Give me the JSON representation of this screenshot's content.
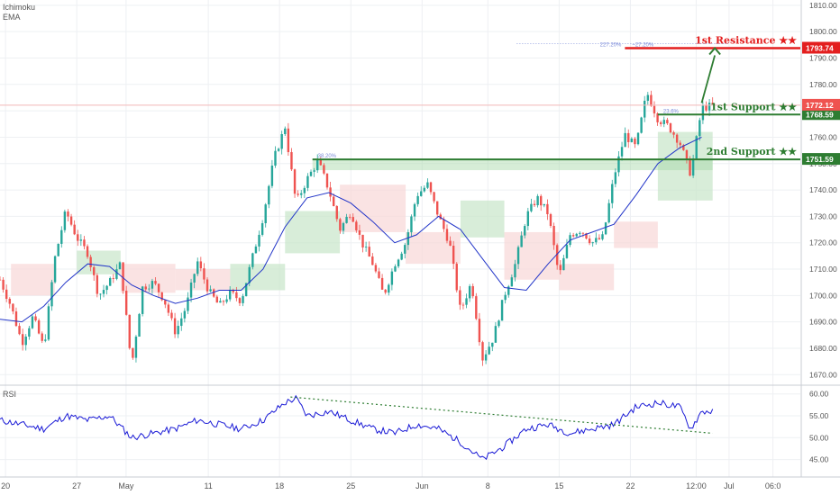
{
  "indicators": {
    "top": [
      "Ichimoku",
      "EMA"
    ],
    "bottom": "RSI"
  },
  "colors": {
    "up": "#26a69a",
    "down": "#ef5350",
    "ema": "#2134c8",
    "resistance": "#e31e1e",
    "support": "#2e7d32",
    "rsi": "#1a1ad6",
    "cloud_bull": "#c8e6c9",
    "cloud_bear": "#f8d7d7",
    "grid": "#eef0f3",
    "axis_text": "#555555",
    "price_line": "#f2b8b8"
  },
  "chart_data": [
    {
      "type": "candlestick",
      "title": "",
      "ylim": [
        1666,
        1812
      ],
      "y_ticks": [
        1670,
        1680,
        1690,
        1700,
        1710,
        1720,
        1730,
        1740,
        1750,
        1760,
        1770,
        1780,
        1790,
        1800,
        1810
      ],
      "y_tick_labels": [
        "1670.00",
        "1680.00",
        "1690.00",
        "1700.00",
        "1710.00",
        "1720.00",
        "1730.00",
        "1740.00",
        "1750.00",
        "1760.00",
        "1770.00",
        "1780.00",
        "1790.00",
        "1800.00",
        "1810.00"
      ],
      "x_range": [
        0,
        73
      ],
      "x_ticks": [
        {
          "x": 0.5,
          "label": "20"
        },
        {
          "x": 7,
          "label": "27"
        },
        {
          "x": 11.5,
          "label": "May"
        },
        {
          "x": 19,
          "label": "11"
        },
        {
          "x": 25.5,
          "label": "18"
        },
        {
          "x": 32,
          "label": "25"
        },
        {
          "x": 38.5,
          "label": "Jun"
        },
        {
          "x": 44.5,
          "label": "8"
        },
        {
          "x": 51,
          "label": "15"
        },
        {
          "x": 57.5,
          "label": "22"
        },
        {
          "x": 63.5,
          "label": "12:00"
        },
        {
          "x": 66.5,
          "label": "Jul"
        },
        {
          "x": 70.5,
          "label": "06:0"
        }
      ],
      "close_path": [
        [
          0,
          1706
        ],
        [
          1,
          1696
        ],
        [
          2,
          1682
        ],
        [
          3,
          1692
        ],
        [
          4,
          1680
        ],
        [
          5,
          1714
        ],
        [
          6,
          1732
        ],
        [
          7,
          1722
        ],
        [
          8,
          1716
        ],
        [
          9,
          1700
        ],
        [
          10,
          1705
        ],
        [
          11,
          1712
        ],
        [
          12,
          1673
        ],
        [
          13,
          1703
        ],
        [
          14,
          1705
        ],
        [
          15,
          1698
        ],
        [
          16,
          1686
        ],
        [
          17,
          1696
        ],
        [
          18,
          1713
        ],
        [
          19,
          1702
        ],
        [
          20,
          1696
        ],
        [
          21,
          1701
        ],
        [
          22,
          1698
        ],
        [
          23,
          1714
        ],
        [
          24,
          1730
        ],
        [
          25,
          1752
        ],
        [
          26,
          1764
        ],
        [
          27,
          1735
        ],
        [
          28,
          1744
        ],
        [
          29,
          1751
        ],
        [
          30,
          1740
        ],
        [
          31,
          1725
        ],
        [
          32,
          1732
        ],
        [
          33,
          1720
        ],
        [
          34,
          1712
        ],
        [
          35,
          1700
        ],
        [
          36,
          1712
        ],
        [
          37,
          1720
        ],
        [
          38,
          1738
        ],
        [
          39,
          1742
        ],
        [
          40,
          1730
        ],
        [
          41,
          1720
        ],
        [
          42,
          1694
        ],
        [
          43,
          1705
        ],
        [
          44,
          1676
        ],
        [
          45,
          1684
        ],
        [
          46,
          1700
        ],
        [
          47,
          1712
        ],
        [
          48,
          1730
        ],
        [
          49,
          1737
        ],
        [
          50,
          1731
        ],
        [
          51,
          1707
        ],
        [
          52,
          1723
        ],
        [
          53,
          1725
        ],
        [
          54,
          1720
        ],
        [
          55,
          1722
        ],
        [
          56,
          1745
        ],
        [
          57,
          1761
        ],
        [
          58,
          1756
        ],
        [
          59,
          1777
        ],
        [
          60,
          1767
        ],
        [
          61,
          1764
        ],
        [
          62,
          1758
        ],
        [
          63,
          1746
        ],
        [
          64,
          1771
        ],
        [
          65,
          1772
        ]
      ],
      "ema_path": [
        [
          0,
          1691
        ],
        [
          2,
          1690
        ],
        [
          4,
          1696
        ],
        [
          6,
          1705
        ],
        [
          8,
          1712
        ],
        [
          10,
          1711
        ],
        [
          12,
          1704
        ],
        [
          14,
          1700
        ],
        [
          16,
          1697
        ],
        [
          18,
          1699
        ],
        [
          20,
          1702
        ],
        [
          22,
          1702
        ],
        [
          24,
          1710
        ],
        [
          26,
          1726
        ],
        [
          28,
          1737
        ],
        [
          30,
          1739
        ],
        [
          32,
          1735
        ],
        [
          34,
          1728
        ],
        [
          36,
          1720
        ],
        [
          38,
          1723
        ],
        [
          40,
          1730
        ],
        [
          42,
          1725
        ],
        [
          44,
          1714
        ],
        [
          46,
          1703
        ],
        [
          48,
          1702
        ],
        [
          50,
          1712
        ],
        [
          52,
          1721
        ],
        [
          54,
          1724
        ],
        [
          56,
          1727
        ],
        [
          58,
          1738
        ],
        [
          60,
          1750
        ],
        [
          62,
          1756
        ],
        [
          64,
          1760
        ]
      ],
      "cloud": [
        {
          "x0": 1,
          "x1": 5,
          "top": 1712,
          "bottom": 1700,
          "trend": "bear"
        },
        {
          "x0": 7,
          "x1": 11,
          "top": 1717,
          "bottom": 1708,
          "trend": "bull"
        },
        {
          "x0": 11,
          "x1": 16,
          "top": 1712,
          "bottom": 1701,
          "trend": "bear"
        },
        {
          "x0": 16,
          "x1": 21,
          "top": 1710,
          "bottom": 1702,
          "trend": "bear"
        },
        {
          "x0": 21,
          "x1": 26,
          "top": 1712,
          "bottom": 1702,
          "trend": "bull"
        },
        {
          "x0": 26,
          "x1": 31,
          "top": 1732,
          "bottom": 1716,
          "trend": "bull"
        },
        {
          "x0": 31,
          "x1": 37,
          "top": 1742,
          "bottom": 1724,
          "trend": "bear"
        },
        {
          "x0": 37,
          "x1": 42,
          "top": 1724,
          "bottom": 1712,
          "trend": "bear"
        },
        {
          "x0": 42,
          "x1": 46,
          "top": 1736,
          "bottom": 1722,
          "trend": "bull"
        },
        {
          "x0": 46,
          "x1": 51,
          "top": 1724,
          "bottom": 1706,
          "trend": "bear"
        },
        {
          "x0": 51,
          "x1": 56,
          "top": 1712,
          "bottom": 1702,
          "trend": "bear"
        },
        {
          "x0": 56,
          "x1": 60,
          "top": 1728,
          "bottom": 1718,
          "trend": "bear"
        },
        {
          "x0": 60,
          "x1": 65,
          "top": 1762,
          "bottom": 1736,
          "trend": "bull"
        }
      ],
      "levels": [
        {
          "name": "1st Resistance ★★",
          "price": 1793.74,
          "price_label": "1793.74",
          "color": "resistance",
          "x0": 57,
          "fib_label": "227.20%",
          "fib_label2": "~27.20%"
        },
        {
          "name": "1st Support ★★",
          "price": 1768.59,
          "price_label": "1768.59",
          "color": "support",
          "x0": 60,
          "fib_label": "23.6%"
        },
        {
          "name": "2nd Support ★★",
          "price": 1751.59,
          "price_label": "1751.59",
          "color": "support",
          "x0": 28.5,
          "fib_label": "38.20%"
        }
      ],
      "current_price": {
        "price": 1772.12,
        "label": "1772.12"
      },
      "zone": {
        "x0": 28.5,
        "x1": 65,
        "top": 1751.59,
        "bottom": 1747.5
      },
      "arrow": {
        "from": [
          64,
          1773
        ],
        "to": [
          65.2,
          1793.74
        ]
      }
    },
    {
      "type": "line",
      "title": "",
      "label": "RSI",
      "ylim": [
        41,
        62
      ],
      "y_ticks": [
        45,
        50,
        55,
        60
      ],
      "y_tick_labels": [
        "45.00",
        "50.00",
        "55.00",
        "60.00"
      ],
      "x_range": [
        0,
        73
      ],
      "values_path": [
        [
          0,
          54
        ],
        [
          2,
          53
        ],
        [
          4,
          52
        ],
        [
          6,
          55
        ],
        [
          8,
          54
        ],
        [
          10,
          55
        ],
        [
          12,
          50
        ],
        [
          14,
          51
        ],
        [
          16,
          52
        ],
        [
          18,
          54
        ],
        [
          20,
          53
        ],
        [
          22,
          52
        ],
        [
          24,
          54
        ],
        [
          26,
          58
        ],
        [
          27,
          59
        ],
        [
          28,
          55
        ],
        [
          30,
          56
        ],
        [
          32,
          54
        ],
        [
          34,
          52
        ],
        [
          36,
          51
        ],
        [
          38,
          53
        ],
        [
          40,
          52
        ],
        [
          42,
          49
        ],
        [
          44,
          45
        ],
        [
          46,
          48
        ],
        [
          48,
          52
        ],
        [
          50,
          53
        ],
        [
          52,
          51
        ],
        [
          54,
          52
        ],
        [
          56,
          53
        ],
        [
          58,
          57
        ],
        [
          60,
          58
        ],
        [
          62,
          57
        ],
        [
          63,
          52
        ],
        [
          64,
          56
        ],
        [
          65,
          56
        ]
      ],
      "trendline": {
        "from": [
          26.5,
          59.3
        ],
        "to": [
          65,
          51
        ]
      }
    }
  ]
}
